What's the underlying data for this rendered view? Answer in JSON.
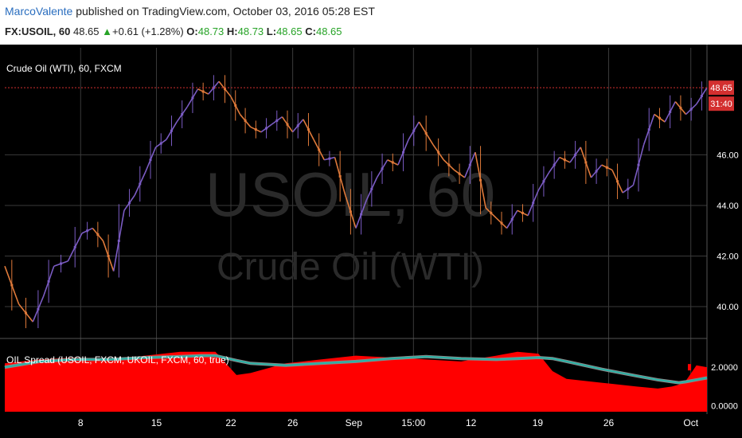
{
  "header": {
    "username": "MarcoValente",
    "published_text": "published on TradingView.com, October 03, 2016 05:28 EST",
    "symbol": "FX:USOIL, 60",
    "last": "48.65",
    "change": "+0.61 (+1.28%)",
    "open_label": "O:",
    "open": "48.73",
    "high_label": "H:",
    "high": "48.73",
    "low_label": "L:",
    "low": "48.65",
    "close_label": "C:",
    "close": "48.65"
  },
  "colors": {
    "background": "#000000",
    "grid": "#3a3a3a",
    "candle": "#7b5cc4",
    "candle_down": "#e07a3a",
    "spread_fill": "#ff0000",
    "ma_line": "#27b3a6",
    "price_tag": "#d32f2f",
    "axis_bg": "#000000",
    "axis_text": "#ffffff"
  },
  "chart_data": [
    {
      "type": "line",
      "title": "Crude Oil (WTI), 60, FXCM",
      "watermark_symbol": "USOIL, 60",
      "watermark_name": "Crude Oil (WTI)",
      "ylim": [
        38.9,
        49.6
      ],
      "yticks": [
        "42.00",
        "44.00",
        "46.00",
        "40.00"
      ],
      "ytick_values": [
        42,
        44,
        46,
        40
      ],
      "last_price_label": "48.65",
      "last_price": 48.65,
      "countdown_label": "31:40",
      "xtick_labels": [
        "8",
        "15",
        "22",
        "26",
        "Sep",
        "15:00",
        "12",
        "19",
        "26",
        "Oct"
      ],
      "xtick_positions": [
        0.108,
        0.216,
        0.322,
        0.41,
        0.497,
        0.582,
        0.664,
        0.759,
        0.86,
        0.977
      ],
      "x": [
        0,
        0.02,
        0.04,
        0.055,
        0.07,
        0.09,
        0.11,
        0.125,
        0.14,
        0.155,
        0.17,
        0.185,
        0.2,
        0.215,
        0.23,
        0.245,
        0.26,
        0.275,
        0.29,
        0.305,
        0.322,
        0.335,
        0.35,
        0.365,
        0.38,
        0.395,
        0.41,
        0.425,
        0.44,
        0.455,
        0.47,
        0.485,
        0.5,
        0.515,
        0.53,
        0.545,
        0.56,
        0.575,
        0.59,
        0.61,
        0.625,
        0.64,
        0.655,
        0.67,
        0.685,
        0.7,
        0.715,
        0.73,
        0.745,
        0.76,
        0.775,
        0.79,
        0.805,
        0.82,
        0.835,
        0.85,
        0.865,
        0.88,
        0.895,
        0.91,
        0.925,
        0.94,
        0.955,
        0.97,
        0.985,
        1.0
      ],
      "values": [
        41.6,
        40.1,
        39.4,
        40.4,
        41.6,
        41.8,
        42.9,
        43.1,
        42.6,
        41.4,
        43.8,
        44.4,
        45.3,
        46.3,
        46.6,
        47.3,
        47.9,
        48.6,
        48.4,
        48.9,
        48.3,
        47.6,
        47.1,
        46.9,
        47.2,
        47.5,
        46.9,
        47.4,
        46.6,
        45.8,
        45.9,
        44.4,
        43.1,
        44.2,
        45.1,
        45.8,
        45.6,
        46.6,
        47.3,
        46.4,
        45.8,
        45.4,
        45.1,
        46.1,
        43.9,
        43.5,
        43.1,
        43.8,
        43.6,
        44.6,
        45.3,
        45.9,
        45.7,
        46.3,
        45.1,
        45.6,
        45.4,
        44.5,
        44.8,
        46.4,
        47.6,
        47.3,
        48.1,
        47.6,
        48.0,
        48.65
      ]
    },
    {
      "type": "area",
      "title": "OIL Spread (USOIL, FXCM, UKOIL, FXCM, 60, true)",
      "ylim": [
        -0.3,
        3.2
      ],
      "yticks": [
        "2.0000",
        "0.0000"
      ],
      "ytick_values": [
        2.0,
        0.0
      ],
      "x": [
        0,
        0.05,
        0.1,
        0.15,
        0.2,
        0.25,
        0.28,
        0.3,
        0.33,
        0.35,
        0.4,
        0.45,
        0.5,
        0.55,
        0.6,
        0.65,
        0.7,
        0.73,
        0.76,
        0.78,
        0.8,
        0.85,
        0.9,
        0.93,
        0.95,
        0.96,
        0.97,
        0.985,
        1.0
      ],
      "series": [
        {
          "name": "spread",
          "values": [
            2.2,
            2.4,
            2.5,
            2.4,
            2.6,
            2.8,
            2.8,
            2.8,
            1.6,
            1.7,
            2.2,
            2.4,
            2.6,
            2.5,
            2.4,
            2.3,
            2.6,
            2.8,
            2.7,
            1.8,
            1.4,
            1.2,
            1.0,
            0.9,
            1.0,
            1.1,
            1.3,
            2.1,
            2.0
          ]
        },
        {
          "name": "ma",
          "values": [
            2.0,
            2.3,
            2.4,
            2.4,
            2.5,
            2.55,
            2.6,
            2.6,
            2.35,
            2.2,
            2.1,
            2.2,
            2.3,
            2.45,
            2.55,
            2.45,
            2.4,
            2.45,
            2.5,
            2.45,
            2.3,
            1.9,
            1.55,
            1.35,
            1.25,
            1.2,
            1.25,
            1.35,
            1.45
          ]
        }
      ]
    }
  ]
}
